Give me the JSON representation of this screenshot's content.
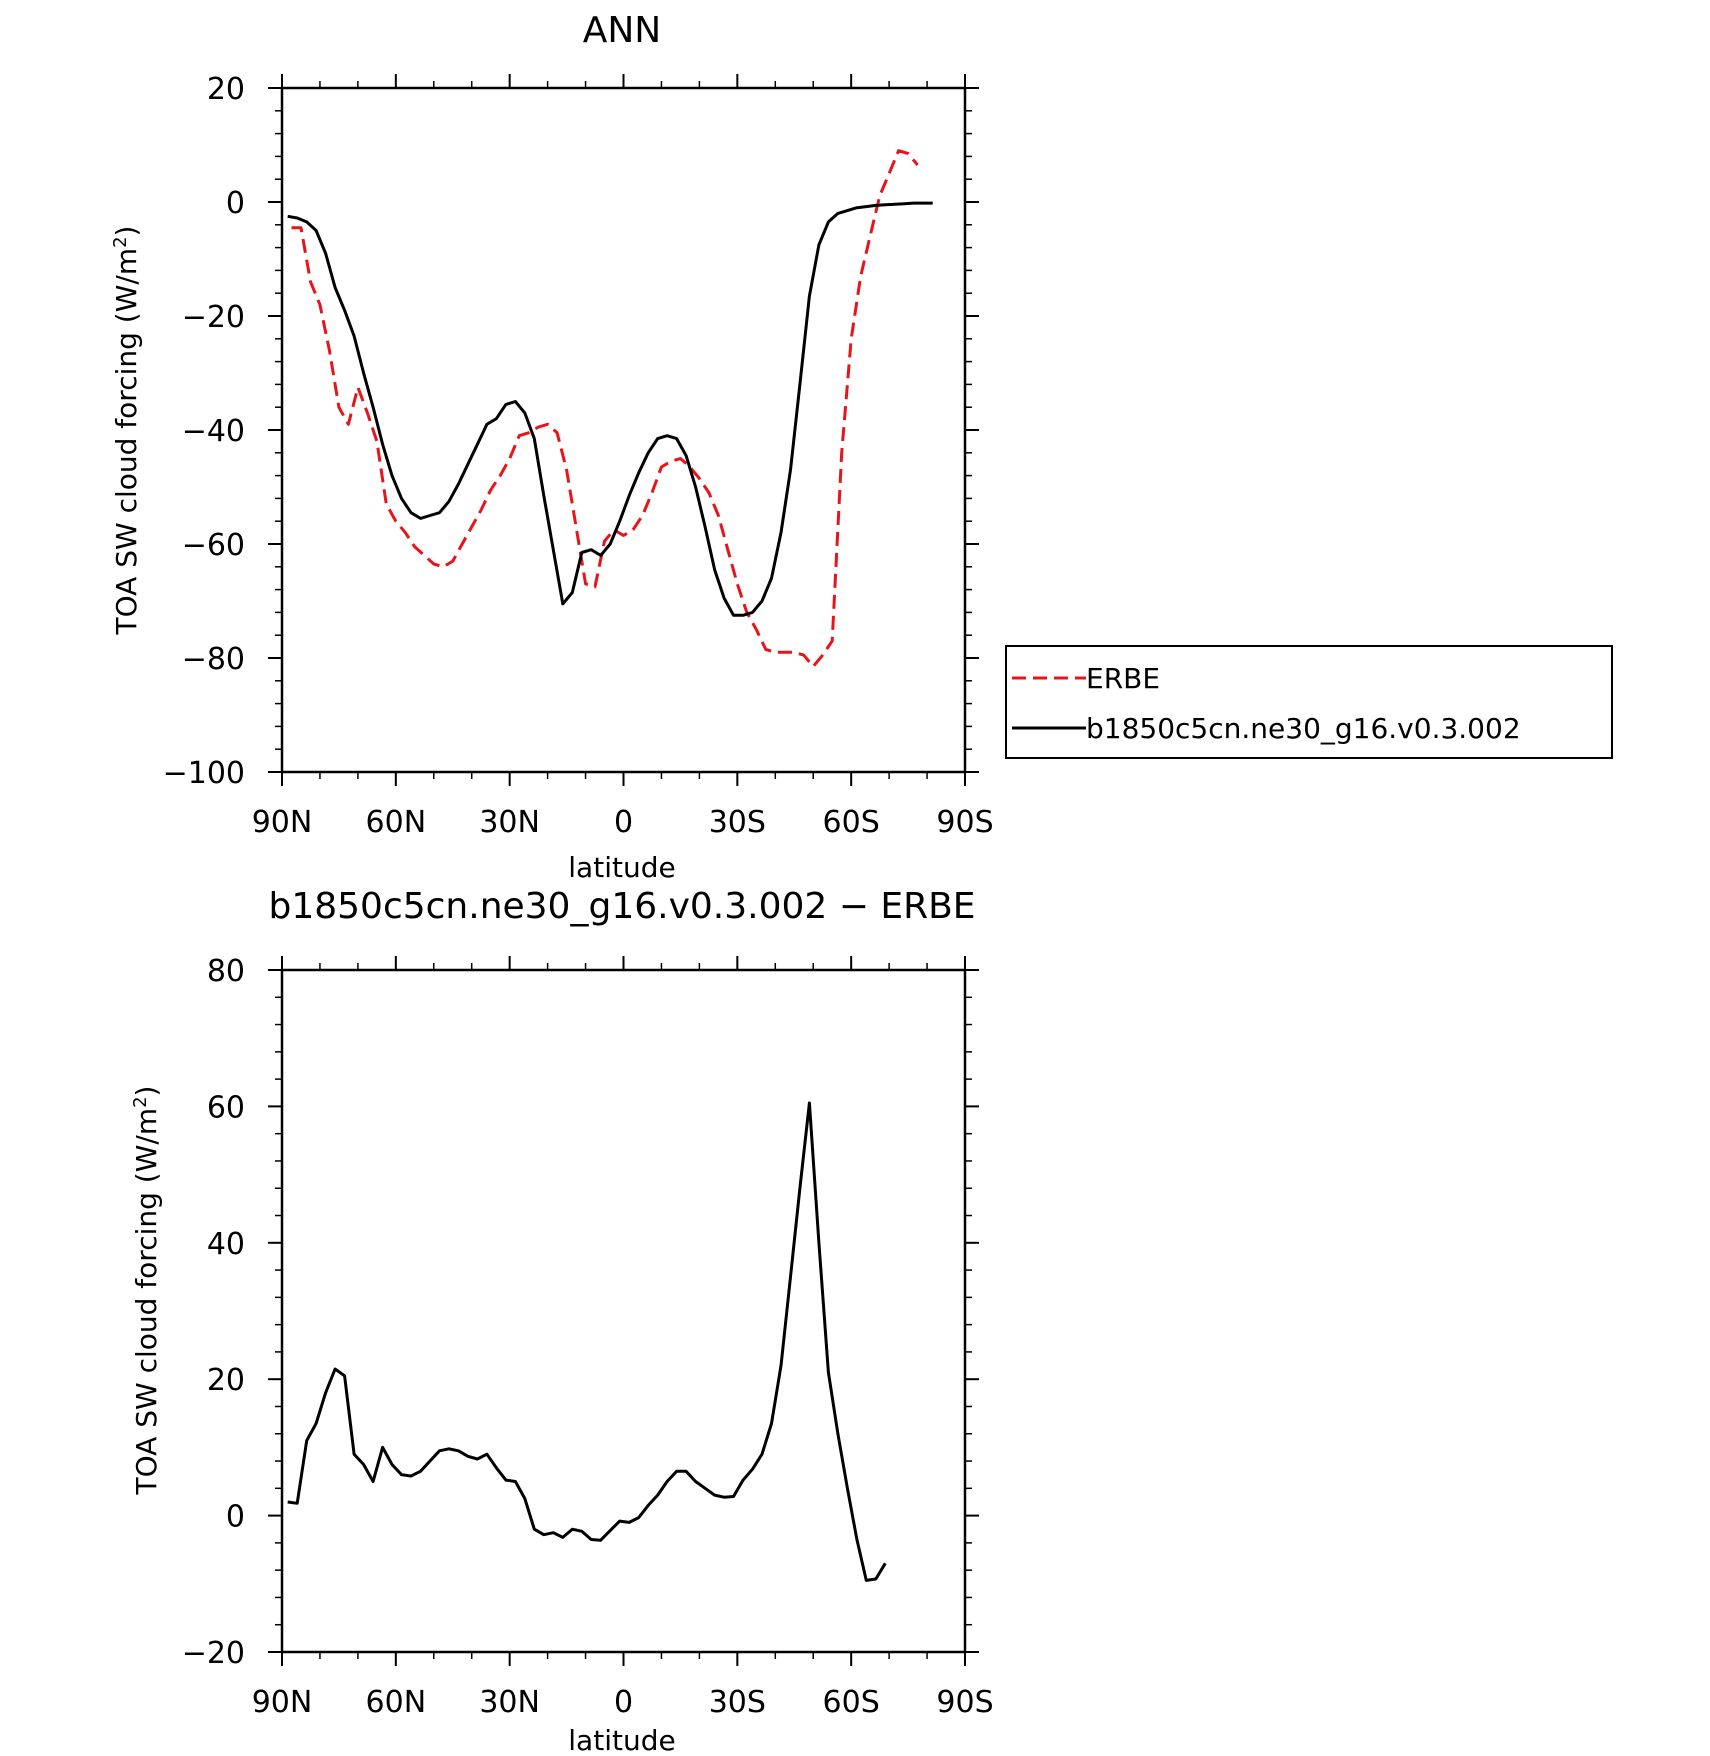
{
  "chart_data": [
    {
      "type": "line",
      "title": "ANN",
      "xlabel": "latitude",
      "ylabel_main": "TOA SW cloud forcing (W/m",
      "ylabel_sup": "2",
      "ylabel_close": ")",
      "xlim": [
        90,
        -90
      ],
      "ylim": [
        -100,
        20
      ],
      "xticks": [
        90,
        60,
        30,
        0,
        -30,
        -60,
        -90
      ],
      "xticklabels": [
        "90N",
        "60N",
        "30N",
        "0",
        "30S",
        "60S",
        "90S"
      ],
      "yticks": [
        20,
        0,
        -20,
        -40,
        -60,
        -80,
        -100
      ],
      "yticklabels": [
        "20",
        "0",
        "−20",
        "−40",
        "−60",
        "−80",
        "−100"
      ],
      "legend": {
        "placement": "right",
        "entries": [
          "ERBE",
          "b1850c5cn.ne30_g16.v0.3.002"
        ]
      },
      "series": [
        {
          "name": "ERBE",
          "color": "#e8141a",
          "dash": "dashed",
          "points": [
            [
              87.5,
              -4.5
            ],
            [
              85,
              -4.5
            ],
            [
              82.5,
              -14
            ],
            [
              80,
              -18
            ],
            [
              77.5,
              -26
            ],
            [
              75,
              -36
            ],
            [
              72.5,
              -39
            ],
            [
              70,
              -32.5
            ],
            [
              67.5,
              -37
            ],
            [
              65,
              -42
            ],
            [
              62.5,
              -53
            ],
            [
              60,
              -56
            ],
            [
              57.5,
              -58
            ],
            [
              55,
              -60.5
            ],
            [
              52.5,
              -62
            ],
            [
              50,
              -63.5
            ],
            [
              47.5,
              -64
            ],
            [
              45,
              -63
            ],
            [
              42.5,
              -60
            ],
            [
              40,
              -57
            ],
            [
              37.5,
              -54
            ],
            [
              35,
              -50.5
            ],
            [
              32.5,
              -48
            ],
            [
              30,
              -45
            ],
            [
              27.5,
              -41
            ],
            [
              25,
              -40.5
            ],
            [
              22.5,
              -39.5
            ],
            [
              20,
              -39
            ],
            [
              17.5,
              -40.5
            ],
            [
              15,
              -47
            ],
            [
              12.5,
              -57
            ],
            [
              10,
              -67
            ],
            [
              7.5,
              -67.5
            ],
            [
              5,
              -59.5
            ],
            [
              2.5,
              -57.5
            ],
            [
              0,
              -58.5
            ],
            [
              -2.5,
              -57.5
            ],
            [
              -5,
              -55
            ],
            [
              -7.5,
              -51
            ],
            [
              -10,
              -46.5
            ],
            [
              -12.5,
              -45.5
            ],
            [
              -15,
              -45
            ],
            [
              -17.5,
              -46.5
            ],
            [
              -20,
              -48.5
            ],
            [
              -22.5,
              -51
            ],
            [
              -25,
              -55
            ],
            [
              -27.5,
              -61
            ],
            [
              -30,
              -67
            ],
            [
              -32.5,
              -72
            ],
            [
              -35,
              -75
            ],
            [
              -37.5,
              -78.5
            ],
            [
              -40,
              -79
            ],
            [
              -42.5,
              -79
            ],
            [
              -45,
              -79
            ],
            [
              -47.5,
              -79.5
            ],
            [
              -50,
              -81.5
            ],
            [
              -52.5,
              -79.5
            ],
            [
              -55,
              -77
            ],
            [
              -57.5,
              -44
            ],
            [
              -60,
              -24
            ],
            [
              -62.5,
              -13
            ],
            [
              -65,
              -6
            ],
            [
              -67.5,
              1
            ],
            [
              -70,
              5
            ],
            [
              -72.5,
              9
            ],
            [
              -75,
              8.5
            ],
            [
              -77.5,
              6.5
            ]
          ]
        },
        {
          "name": "b1850c5cn.ne30_g16.v0.3.002",
          "color": "#000000",
          "dash": "solid",
          "points": [
            [
              88.5,
              -2.5
            ],
            [
              86,
              -2.8
            ],
            [
              83.5,
              -3.5
            ],
            [
              81,
              -5
            ],
            [
              78.5,
              -9
            ],
            [
              76,
              -15
            ],
            [
              73.5,
              -19
            ],
            [
              71,
              -23.5
            ],
            [
              68.5,
              -30
            ],
            [
              66,
              -36
            ],
            [
              63.5,
              -42.5
            ],
            [
              61,
              -48
            ],
            [
              58.5,
              -52
            ],
            [
              56,
              -54.5
            ],
            [
              53.5,
              -55.5
            ],
            [
              51,
              -55
            ],
            [
              48.5,
              -54.5
            ],
            [
              46,
              -52.5
            ],
            [
              43.5,
              -49.5
            ],
            [
              41,
              -46
            ],
            [
              38.5,
              -42.5
            ],
            [
              36,
              -39
            ],
            [
              33.5,
              -38
            ],
            [
              31,
              -35.5
            ],
            [
              28.5,
              -35
            ],
            [
              26,
              -37
            ],
            [
              23.5,
              -41.5
            ],
            [
              21,
              -51.5
            ],
            [
              18.5,
              -61
            ],
            [
              16,
              -70.5
            ],
            [
              13.5,
              -68.5
            ],
            [
              11,
              -61.5
            ],
            [
              8.5,
              -61
            ],
            [
              6,
              -62
            ],
            [
              3.5,
              -60
            ],
            [
              1,
              -56
            ],
            [
              -1.5,
              -51.5
            ],
            [
              -4,
              -47.5
            ],
            [
              -6.5,
              -44
            ],
            [
              -9,
              -41.5
            ],
            [
              -11.5,
              -41
            ],
            [
              -14,
              -41.5
            ],
            [
              -16.5,
              -44.5
            ],
            [
              -19,
              -50
            ],
            [
              -21.5,
              -57
            ],
            [
              -24,
              -64.5
            ],
            [
              -26.5,
              -69.5
            ],
            [
              -29,
              -72.5
            ],
            [
              -31.5,
              -72.5
            ],
            [
              -34,
              -72
            ],
            [
              -36.5,
              -70
            ],
            [
              -39,
              -66
            ],
            [
              -41.5,
              -58
            ],
            [
              -44,
              -47
            ],
            [
              -46.5,
              -32
            ],
            [
              -49,
              -16.5
            ],
            [
              -51.5,
              -7.5
            ],
            [
              -54,
              -3.5
            ],
            [
              -56.5,
              -2
            ],
            [
              -59,
              -1.5
            ],
            [
              -61.5,
              -1
            ],
            [
              -64,
              -0.8
            ],
            [
              -66.5,
              -0.6
            ],
            [
              -69,
              -0.5
            ],
            [
              -71.5,
              -0.4
            ],
            [
              -74,
              -0.3
            ],
            [
              -76.5,
              -0.2
            ],
            [
              -79,
              -0.2
            ],
            [
              -81.5,
              -0.2
            ]
          ]
        }
      ]
    },
    {
      "type": "line",
      "title": "b1850c5cn.ne30_g16.v0.3.002 − ERBE",
      "xlabel": "latitude",
      "ylabel_main": "TOA SW cloud forcing (W/m",
      "ylabel_sup": "2",
      "ylabel_close": ")",
      "xlim": [
        90,
        -90
      ],
      "ylim": [
        -20,
        80
      ],
      "xticks": [
        90,
        60,
        30,
        0,
        -30,
        -60,
        -90
      ],
      "xticklabels": [
        "90N",
        "60N",
        "30N",
        "0",
        "30S",
        "60S",
        "90S"
      ],
      "yticks": [
        80,
        60,
        40,
        20,
        0,
        -20
      ],
      "yticklabels": [
        "80",
        "60",
        "40",
        "20",
        "0",
        "−20"
      ],
      "series": [
        {
          "color": "#000000",
          "dash": "solid",
          "points": [
            [
              88.5,
              2
            ],
            [
              86,
              1.8
            ],
            [
              83.5,
              11
            ],
            [
              81,
              13.5
            ],
            [
              78.5,
              18
            ],
            [
              76,
              21.5
            ],
            [
              73.5,
              20.5
            ],
            [
              71,
              9
            ],
            [
              68.5,
              7.5
            ],
            [
              66,
              5
            ],
            [
              63.5,
              10
            ],
            [
              61,
              7.5
            ],
            [
              58.5,
              6
            ],
            [
              56,
              5.8
            ],
            [
              53.5,
              6.5
            ],
            [
              51,
              8
            ],
            [
              48.5,
              9.5
            ],
            [
              46,
              9.8
            ],
            [
              43.5,
              9.5
            ],
            [
              41,
              8.7
            ],
            [
              38.5,
              8.3
            ],
            [
              36,
              9
            ],
            [
              33.5,
              7
            ],
            [
              31,
              5.2
            ],
            [
              28.5,
              5
            ],
            [
              26,
              2.5
            ],
            [
              23.5,
              -2
            ],
            [
              21,
              -2.8
            ],
            [
              18.5,
              -2.5
            ],
            [
              16,
              -3.2
            ],
            [
              13.5,
              -2
            ],
            [
              11,
              -2.3
            ],
            [
              8.5,
              -3.5
            ],
            [
              6,
              -3.6
            ],
            [
              3.5,
              -2.2
            ],
            [
              1,
              -0.8
            ],
            [
              -1.5,
              -1
            ],
            [
              -4,
              -0.3
            ],
            [
              -6.5,
              1.5
            ],
            [
              -9,
              3
            ],
            [
              -11.5,
              5
            ],
            [
              -14,
              6.5
            ],
            [
              -16.5,
              6.5
            ],
            [
              -19,
              5
            ],
            [
              -21.5,
              4
            ],
            [
              -24,
              3
            ],
            [
              -26.5,
              2.7
            ],
            [
              -29,
              2.8
            ],
            [
              -31.5,
              5.2
            ],
            [
              -34,
              6.8
            ],
            [
              -36.5,
              9
            ],
            [
              -39,
              13.5
            ],
            [
              -41.5,
              22
            ],
            [
              -44,
              35
            ],
            [
              -46.5,
              48
            ],
            [
              -49,
              60.5
            ],
            [
              -51.5,
              40
            ],
            [
              -54,
              21
            ],
            [
              -56.5,
              12
            ],
            [
              -59,
              4
            ],
            [
              -61.5,
              -3.5
            ],
            [
              -64,
              -9.5
            ],
            [
              -66.5,
              -9.3
            ],
            [
              -69,
              -7
            ]
          ]
        }
      ]
    }
  ]
}
